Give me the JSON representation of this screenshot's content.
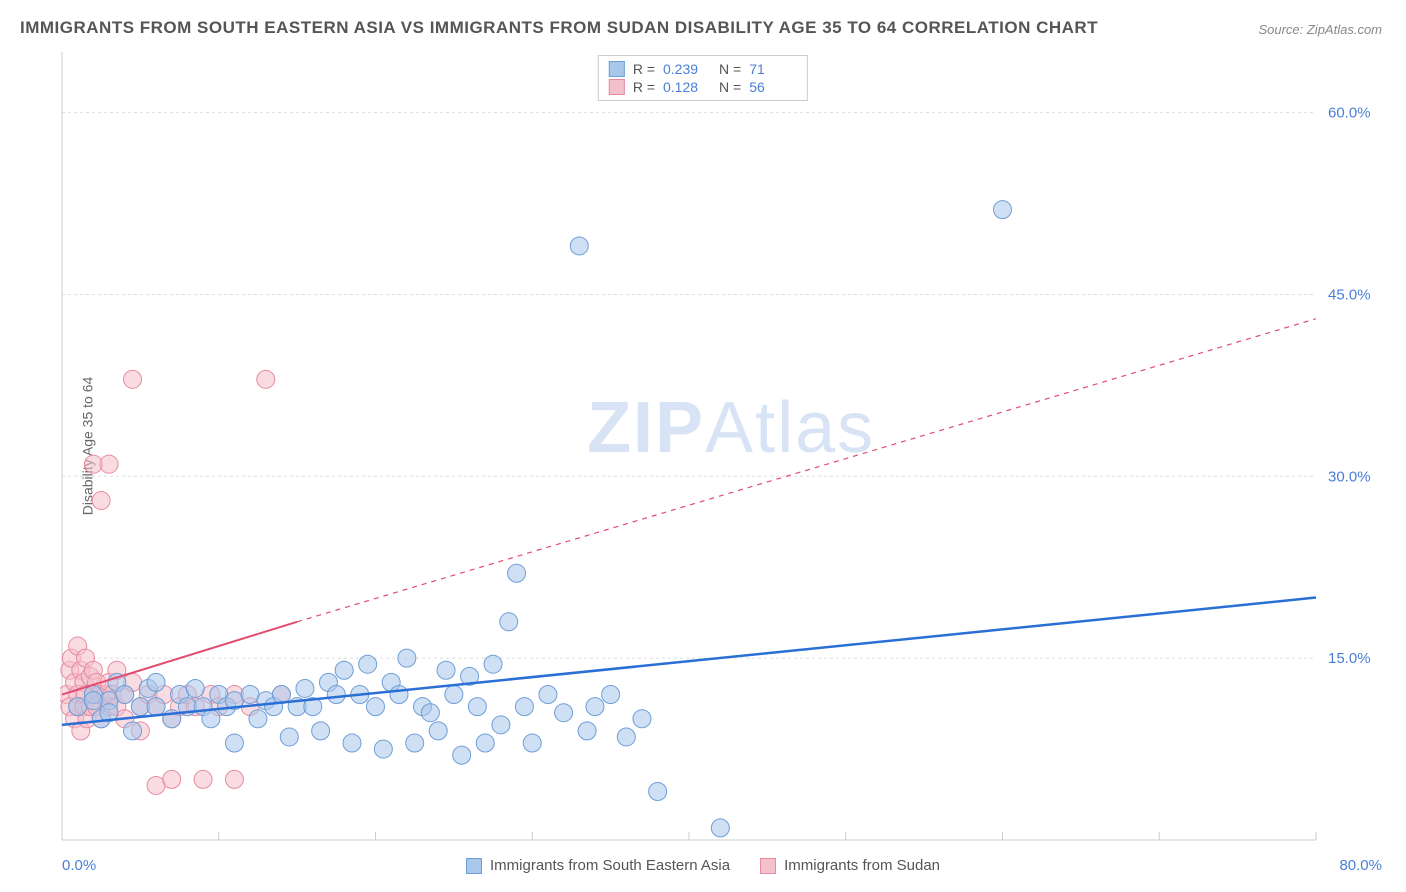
{
  "title": "IMMIGRANTS FROM SOUTH EASTERN ASIA VS IMMIGRANTS FROM SUDAN DISABILITY AGE 35 TO 64 CORRELATION CHART",
  "source": "Source: ZipAtlas.com",
  "watermark_zip": "ZIP",
  "watermark_atlas": "Atlas",
  "y_axis_label": "Disability Age 35 to 64",
  "x_min_label": "0.0%",
  "x_max_label": "80.0%",
  "chart": {
    "type": "scatter",
    "background_color": "#ffffff",
    "grid_color": "#dddddd",
    "axis_color": "#cccccc",
    "xlim": [
      0,
      80
    ],
    "ylim": [
      0,
      65
    ],
    "x_ticks": [
      0,
      10,
      20,
      30,
      40,
      50,
      60,
      70,
      80
    ],
    "y_ticks": [
      15,
      30,
      45,
      60
    ],
    "y_tick_labels": [
      "15.0%",
      "30.0%",
      "45.0%",
      "60.0%"
    ],
    "y_tick_color": "#4a7fd8",
    "y_tick_fontsize": 15,
    "marker_radius": 9,
    "marker_opacity": 0.55,
    "series": [
      {
        "name": "Immigrants from South Eastern Asia",
        "color_fill": "#a9c7eb",
        "color_stroke": "#6e9ed8",
        "r": "0.239",
        "n": "71",
        "trend": {
          "x1": 0,
          "y1": 9.5,
          "x2": 80,
          "y2": 20,
          "color": "#2a6fd6",
          "width": 2.5,
          "dash_from_x": 80
        },
        "points": [
          [
            1,
            11
          ],
          [
            2,
            12
          ],
          [
            2.5,
            10
          ],
          [
            3,
            11.5
          ],
          [
            3.5,
            13
          ],
          [
            4,
            12
          ],
          [
            4.5,
            9
          ],
          [
            5,
            11
          ],
          [
            5.5,
            12.5
          ],
          [
            6,
            11
          ],
          [
            6,
            13
          ],
          [
            7,
            10
          ],
          [
            7.5,
            12
          ],
          [
            8,
            11
          ],
          [
            8.5,
            12.5
          ],
          [
            9,
            11
          ],
          [
            9.5,
            10
          ],
          [
            10,
            12
          ],
          [
            10.5,
            11
          ],
          [
            11,
            11.5
          ],
          [
            11,
            8
          ],
          [
            12,
            12
          ],
          [
            12.5,
            10
          ],
          [
            13,
            11.5
          ],
          [
            13.5,
            11
          ],
          [
            14,
            12
          ],
          [
            14.5,
            8.5
          ],
          [
            15,
            11
          ],
          [
            15.5,
            12.5
          ],
          [
            16,
            11
          ],
          [
            16.5,
            9
          ],
          [
            17,
            13
          ],
          [
            17.5,
            12
          ],
          [
            18,
            14
          ],
          [
            18.5,
            8
          ],
          [
            19,
            12
          ],
          [
            19.5,
            14.5
          ],
          [
            20,
            11
          ],
          [
            20.5,
            7.5
          ],
          [
            21,
            13
          ],
          [
            21.5,
            12
          ],
          [
            22,
            15
          ],
          [
            22.5,
            8
          ],
          [
            23,
            11
          ],
          [
            23.5,
            10.5
          ],
          [
            24,
            9
          ],
          [
            24.5,
            14
          ],
          [
            25,
            12
          ],
          [
            25.5,
            7
          ],
          [
            26,
            13.5
          ],
          [
            26.5,
            11
          ],
          [
            27,
            8
          ],
          [
            27.5,
            14.5
          ],
          [
            28,
            9.5
          ],
          [
            28.5,
            18
          ],
          [
            29,
            22
          ],
          [
            29.5,
            11
          ],
          [
            30,
            8
          ],
          [
            31,
            12
          ],
          [
            32,
            10.5
          ],
          [
            33,
            49
          ],
          [
            33.5,
            9
          ],
          [
            34,
            11
          ],
          [
            35,
            12
          ],
          [
            36,
            8.5
          ],
          [
            37,
            10
          ],
          [
            38,
            4
          ],
          [
            42,
            1
          ],
          [
            60,
            52
          ],
          [
            2,
            11.5
          ],
          [
            3,
            10.5
          ]
        ]
      },
      {
        "name": "Immigrants from Sudan",
        "color_fill": "#f4c0ca",
        "color_stroke": "#e88ba0",
        "r": "0.128",
        "n": "56",
        "trend": {
          "x1": 0,
          "y1": 12,
          "x2": 15,
          "y2": 18,
          "extend_x2": 80,
          "extend_y2": 43,
          "color": "#e24c6f",
          "width": 2,
          "dash_from_x": 15
        },
        "points": [
          [
            0.3,
            12
          ],
          [
            0.5,
            14
          ],
          [
            0.5,
            11
          ],
          [
            0.6,
            15
          ],
          [
            0.8,
            10
          ],
          [
            0.8,
            13
          ],
          [
            1,
            12
          ],
          [
            1,
            16
          ],
          [
            1,
            11
          ],
          [
            1.2,
            14
          ],
          [
            1.2,
            9
          ],
          [
            1.4,
            13
          ],
          [
            1.4,
            11
          ],
          [
            1.5,
            15
          ],
          [
            1.5,
            12
          ],
          [
            1.6,
            10
          ],
          [
            1.8,
            13.5
          ],
          [
            1.8,
            11
          ],
          [
            2,
            14
          ],
          [
            2,
            12
          ],
          [
            2,
            31
          ],
          [
            2.2,
            11
          ],
          [
            2.2,
            13
          ],
          [
            2.4,
            12
          ],
          [
            2.5,
            28
          ],
          [
            2.5,
            10
          ],
          [
            2.8,
            12
          ],
          [
            3,
            13
          ],
          [
            3,
            11
          ],
          [
            3,
            31
          ],
          [
            3.2,
            12
          ],
          [
            3.5,
            11
          ],
          [
            3.5,
            14
          ],
          [
            4,
            12
          ],
          [
            4,
            10
          ],
          [
            4.5,
            13
          ],
          [
            4.5,
            38
          ],
          [
            5,
            11
          ],
          [
            5,
            9
          ],
          [
            5.5,
            12
          ],
          [
            6,
            11
          ],
          [
            6,
            4.5
          ],
          [
            6.5,
            12
          ],
          [
            7,
            10
          ],
          [
            7,
            5
          ],
          [
            7.5,
            11
          ],
          [
            8,
            12
          ],
          [
            8.5,
            11
          ],
          [
            9,
            5
          ],
          [
            9.5,
            12
          ],
          [
            10,
            11
          ],
          [
            11,
            12
          ],
          [
            11,
            5
          ],
          [
            12,
            11
          ],
          [
            13,
            38
          ],
          [
            14,
            12
          ]
        ]
      }
    ]
  },
  "legend_top_rows": [
    {
      "swatch_fill": "#a9c7eb",
      "swatch_stroke": "#6e9ed8",
      "r": "0.239",
      "n": "71"
    },
    {
      "swatch_fill": "#f4c0ca",
      "swatch_stroke": "#e88ba0",
      "r": "0.128",
      "n": "56"
    }
  ],
  "legend_bottom": [
    {
      "label": "Immigrants from South Eastern Asia",
      "swatch_fill": "#a9c7eb",
      "swatch_stroke": "#6e9ed8"
    },
    {
      "label": "Immigrants from Sudan",
      "swatch_fill": "#f4c0ca",
      "swatch_stroke": "#e88ba0"
    }
  ],
  "r_label": "R =",
  "n_label": "N ="
}
